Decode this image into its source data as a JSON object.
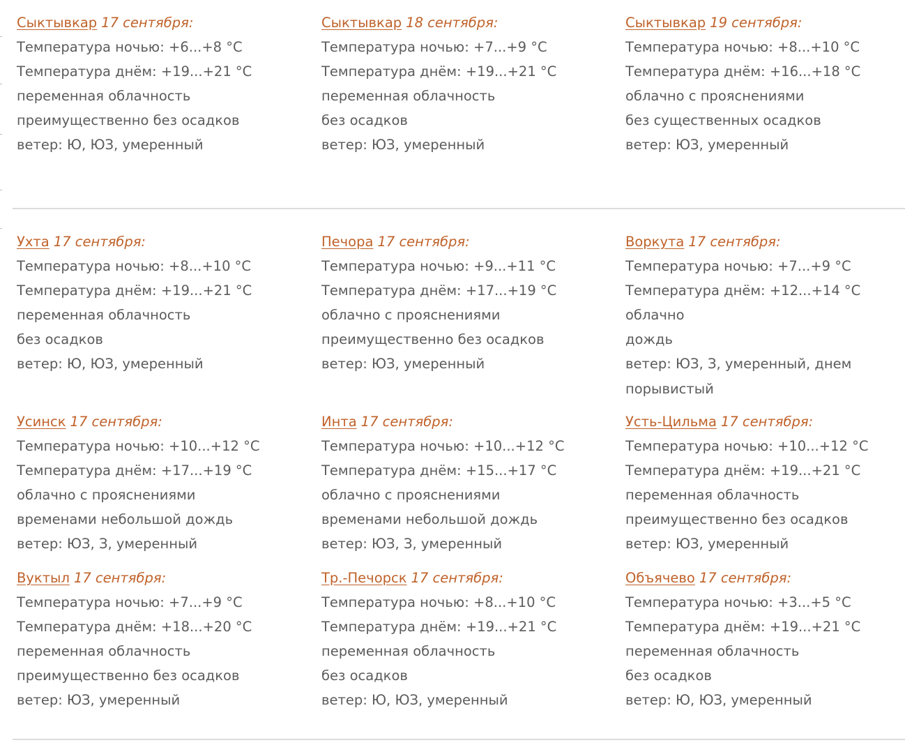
{
  "colors": {
    "accent": "#c0622a",
    "text": "#5c5c5c",
    "divider": "#dcdcdc"
  },
  "forecasts": [
    {
      "city": "Сыктывкар",
      "date": "17 сентября:",
      "lines": [
        "Температура ночью: +6...+8 °C",
        "Температура днём: +19...+21 °C",
        "переменная облачность",
        "преимущественно без осадков",
        "ветер: Ю, ЮЗ, умеренный"
      ]
    },
    {
      "city": "Сыктывкар",
      "date": "18 сентября:",
      "lines": [
        "Температура ночью: +7...+9 °C",
        "Температура днём: +19...+21 °C",
        "переменная облачность",
        "без осадков",
        "ветер: ЮЗ, умеренный"
      ]
    },
    {
      "city": "Сыктывкар",
      "date": "19 сентября:",
      "lines": [
        "Температура ночью: +8...+10 °C",
        "Температура днём: +16...+18 °C",
        "облачно с прояснениями",
        "без существенных осадков",
        "ветер: ЮЗ, умеренный"
      ]
    },
    {
      "city": "Ухта",
      "date": "17 сентября:",
      "lines": [
        "Температура ночью: +8...+10 °C",
        "Температура днём: +19...+21 °C",
        "переменная облачность",
        "без осадков",
        "ветер: Ю, ЮЗ, умеренный"
      ]
    },
    {
      "city": "Печора",
      "date": "17 сентября:",
      "lines": [
        "Температура ночью: +9...+11 °C",
        "Температура днём: +17...+19 °C",
        "облачно с прояснениями",
        "преимущественно без осадков",
        "ветер: ЮЗ, умеренный"
      ]
    },
    {
      "city": "Воркута",
      "date": "17 сентября:",
      "lines": [
        "Температура ночью: +7...+9 °C",
        "Температура днём: +12...+14 °C",
        "облачно",
        "дождь",
        "ветер: ЮЗ, З, умеренный, днем",
        "порывистый"
      ]
    },
    {
      "city": "Усинск",
      "date": "17 сентября:",
      "lines": [
        "Температура ночью: +10...+12 °C",
        "Температура днём: +17...+19 °C",
        "облачно с прояснениями",
        "временами небольшой дождь",
        "ветер: ЮЗ, З, умеренный"
      ]
    },
    {
      "city": "Инта",
      "date": "17 сентября:",
      "lines": [
        "Температура ночью: +10...+12 °C",
        "Температура днём: +15...+17 °C",
        "облачно с прояснениями",
        "временами небольшой дождь",
        "ветер: ЮЗ, З, умеренный"
      ]
    },
    {
      "city": "Усть-Цильма",
      "date": "17 сентября:",
      "lines": [
        "Температура ночью: +10...+12 °C",
        "Температура днём: +19...+21 °C",
        "переменная облачность",
        "преимущественно без осадков",
        "ветер: ЮЗ, умеренный"
      ]
    },
    {
      "city": "Вуктыл",
      "date": "17 сентября:",
      "lines": [
        "Температура ночью: +7...+9 °C",
        "Температура днём: +18...+20 °C",
        "переменная облачность",
        "преимущественно без осадков",
        "ветер: ЮЗ, умеренный"
      ]
    },
    {
      "city": "Тр.-Печорск",
      "date": "17 сентября:",
      "lines": [
        "Температура ночью: +8...+10 °C",
        "Температура днём: +19...+21 °C",
        "переменная облачность",
        "без осадков",
        "ветер: Ю, ЮЗ, умеренный"
      ]
    },
    {
      "city": "Объячево",
      "date": "17 сентября:",
      "lines": [
        "Температура ночью: +3...+5 °C",
        "Температура днём: +19...+21 °C",
        "переменная облачность",
        "без осадков",
        "ветер: Ю, ЮЗ, умеренный"
      ]
    }
  ]
}
